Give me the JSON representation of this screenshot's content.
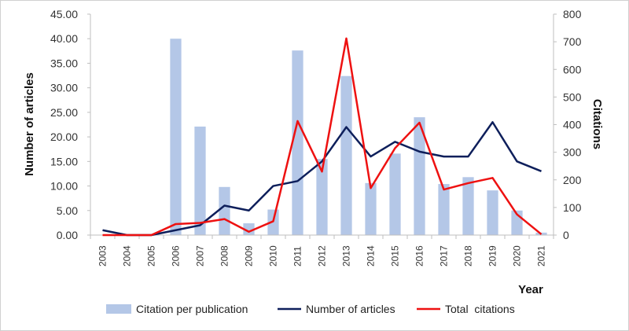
{
  "chart_data": {
    "type": "bar",
    "categories": [
      "2003",
      "2004",
      "2005",
      "2006",
      "2007",
      "2008",
      "2009",
      "2010",
      "2011",
      "2012",
      "2013",
      "2014",
      "2015",
      "2016",
      "2017",
      "2018",
      "2019",
      "2020",
      "2021"
    ],
    "series": [
      {
        "name": "Citation per publication",
        "kind": "bar",
        "axis": "left",
        "color": "#b4c7e7",
        "values": [
          0,
          0,
          0,
          40.0,
          22.1,
          9.8,
          2.4,
          5.2,
          37.6,
          15.5,
          32.4,
          10.6,
          16.6,
          24.0,
          10.4,
          11.8,
          9.1,
          5.0,
          0.5
        ]
      },
      {
        "name": "Number of articles",
        "kind": "line",
        "axis": "left",
        "color": "#0e1f5b",
        "values": [
          1,
          0,
          0,
          1,
          2,
          6,
          5,
          10,
          11,
          15,
          22,
          16,
          19,
          17,
          16,
          16,
          23,
          15,
          13
        ]
      },
      {
        "name": "Total  citations",
        "kind": "line",
        "axis": "right",
        "color": "#ee1111",
        "values": [
          0,
          0,
          0,
          40,
          44,
          58,
          12,
          50,
          413,
          230,
          712,
          170,
          315,
          407,
          165,
          188,
          207,
          75,
          3
        ]
      }
    ],
    "ylabel": "Number of articles",
    "y2label": "Citations",
    "xlabel": "Year",
    "ylim": [
      0,
      45
    ],
    "y2lim": [
      0,
      800
    ],
    "yticks": [
      "0.00",
      "5.00",
      "10.00",
      "15.00",
      "20.00",
      "25.00",
      "30.00",
      "35.00",
      "40.00",
      "45.00"
    ],
    "y2ticks": [
      "0",
      "100",
      "200",
      "300",
      "400",
      "500",
      "600",
      "700",
      "800"
    ],
    "grid": false,
    "legend_position": "bottom"
  }
}
